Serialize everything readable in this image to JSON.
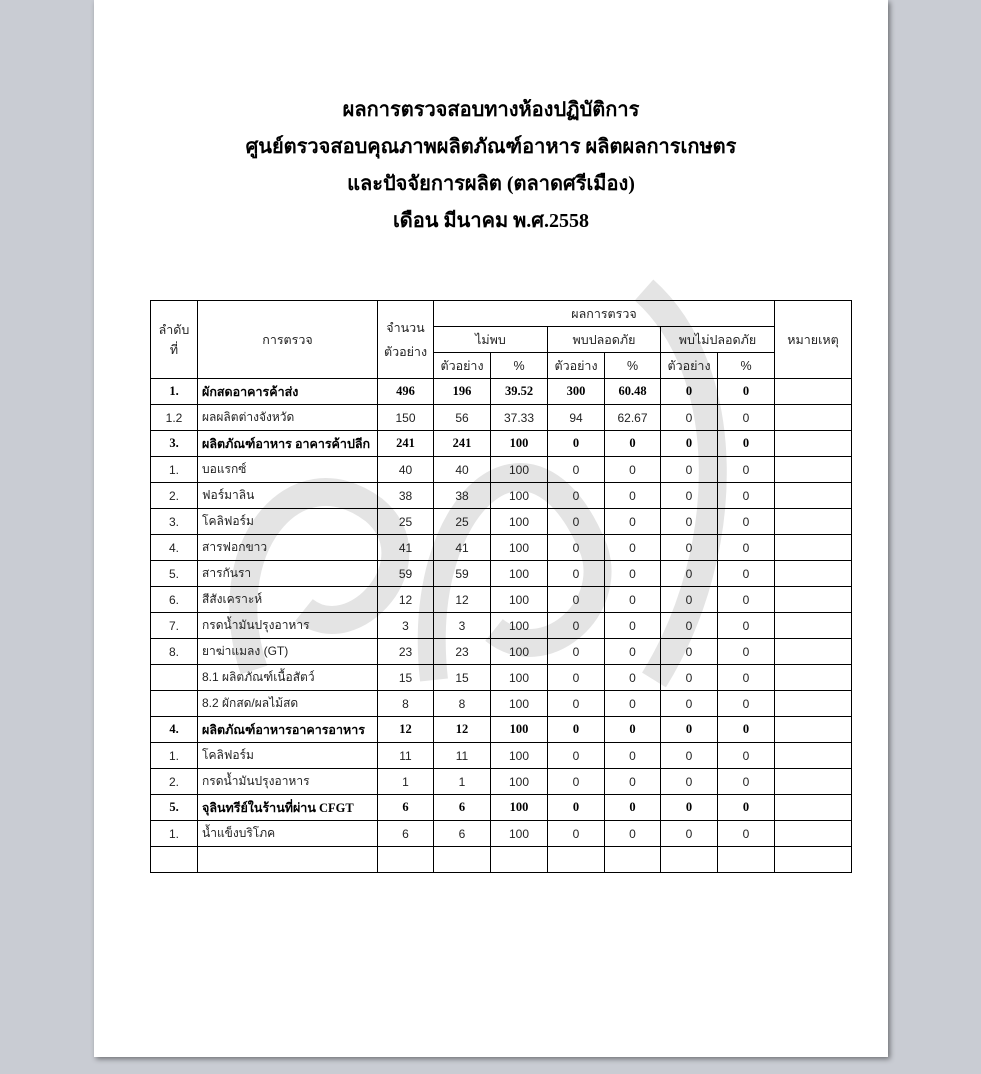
{
  "titles": [
    "ผลการตรวจสอบทางห้องปฏิบัติการ",
    "ศูนย์ตรวจสอบคุณภาพผลิตภัณฑ์อาหาร ผลิตผลการเกษตร",
    "และปัจจัยการผลิต (ตลาดศรีเมือง)",
    "เดือน  มีนาคม พ.ศ.2558"
  ],
  "table": {
    "headers": {
      "no": "ลำดับ ที่",
      "item": "การตรวจ",
      "total": "จำนวน ตัวอย่าง",
      "result": "ผลการตรวจ",
      "not_found": "ไม่พบ",
      "safe": "พบปลอดภัย",
      "unsafe": "พบไม่ปลอดภัย",
      "sample": "ตัวอย่าง",
      "pct": "%",
      "remark": "หมายเหตุ"
    },
    "rows": [
      {
        "no": "1.",
        "item": "ผักสดอาคารค้าส่ง",
        "bold": true,
        "v": [
          "496",
          "196",
          "39.52",
          "300",
          "60.48",
          "0",
          "0"
        ]
      },
      {
        "no": "1.2",
        "item": "ผลผลิตต่างจังหวัด",
        "bold": false,
        "v": [
          "150",
          "56",
          "37.33",
          "94",
          "62.67",
          "0",
          "0"
        ]
      },
      {
        "no": "3.",
        "item": "ผลิตภัณฑ์อาหาร อาคารค้าปลีก",
        "bold": true,
        "v": [
          "241",
          "241",
          "100",
          "0",
          "0",
          "0",
          "0"
        ]
      },
      {
        "no": "1.",
        "item": "บอแรกซ์",
        "bold": false,
        "v": [
          "40",
          "40",
          "100",
          "0",
          "0",
          "0",
          "0"
        ]
      },
      {
        "no": "2.",
        "item": "ฟอร์มาลิน",
        "bold": false,
        "v": [
          "38",
          "38",
          "100",
          "0",
          "0",
          "0",
          "0"
        ]
      },
      {
        "no": "3.",
        "item": "โคลิฟอร์ม",
        "bold": false,
        "v": [
          "25",
          "25",
          "100",
          "0",
          "0",
          "0",
          "0"
        ]
      },
      {
        "no": "4.",
        "item": "สารฟอกขาว",
        "bold": false,
        "v": [
          "41",
          "41",
          "100",
          "0",
          "0",
          "0",
          "0"
        ]
      },
      {
        "no": "5.",
        "item": "สารกันรา",
        "bold": false,
        "v": [
          "59",
          "59",
          "100",
          "0",
          "0",
          "0",
          "0"
        ]
      },
      {
        "no": "6.",
        "item": "สีสังเคราะห์",
        "bold": false,
        "v": [
          "12",
          "12",
          "100",
          "0",
          "0",
          "0",
          "0"
        ]
      },
      {
        "no": "7.",
        "item": "กรดน้ำมันปรุงอาหาร",
        "bold": false,
        "v": [
          "3",
          "3",
          "100",
          "0",
          "0",
          "0",
          "0"
        ]
      },
      {
        "no": "8.",
        "item": "ยาฆ่าแมลง (GT)",
        "bold": false,
        "v": [
          "23",
          "23",
          "100",
          "0",
          "0",
          "0",
          "0"
        ]
      },
      {
        "no": "",
        "item": "8.1  ผลิตภัณฑ์เนื้อสัตว์",
        "bold": false,
        "v": [
          "15",
          "15",
          "100",
          "0",
          "0",
          "0",
          "0"
        ]
      },
      {
        "no": "",
        "item": "8.2  ผักสด/ผลไม้สด",
        "bold": false,
        "v": [
          "8",
          "8",
          "100",
          "0",
          "0",
          "0",
          "0"
        ]
      },
      {
        "no": "4.",
        "item": "ผลิตภัณฑ์อาหารอาคารอาหาร",
        "bold": true,
        "v": [
          "12",
          "12",
          "100",
          "0",
          "0",
          "0",
          "0"
        ]
      },
      {
        "no": "1.",
        "item": "โคลิฟอร์ม",
        "bold": false,
        "v": [
          "11",
          "11",
          "100",
          "0",
          "0",
          "0",
          "0"
        ]
      },
      {
        "no": "2.",
        "item": "กรดน้ำมันปรุงอาหาร",
        "bold": false,
        "v": [
          "1",
          "1",
          "100",
          "0",
          "0",
          "0",
          "0"
        ]
      },
      {
        "no": "5.",
        "item": "จุลินทรีย์ในร้านที่ผ่าน CFGT",
        "bold": true,
        "v": [
          "6",
          "6",
          "100",
          "0",
          "0",
          "0",
          "0"
        ]
      },
      {
        "no": "1.",
        "item": "น้ำแข็งบริโภค",
        "bold": false,
        "v": [
          "6",
          "6",
          "100",
          "0",
          "0",
          "0",
          "0"
        ]
      },
      {
        "no": "",
        "item": "",
        "bold": false,
        "v": [
          "",
          "",
          "",
          "",
          "",
          "",
          ""
        ]
      }
    ]
  }
}
